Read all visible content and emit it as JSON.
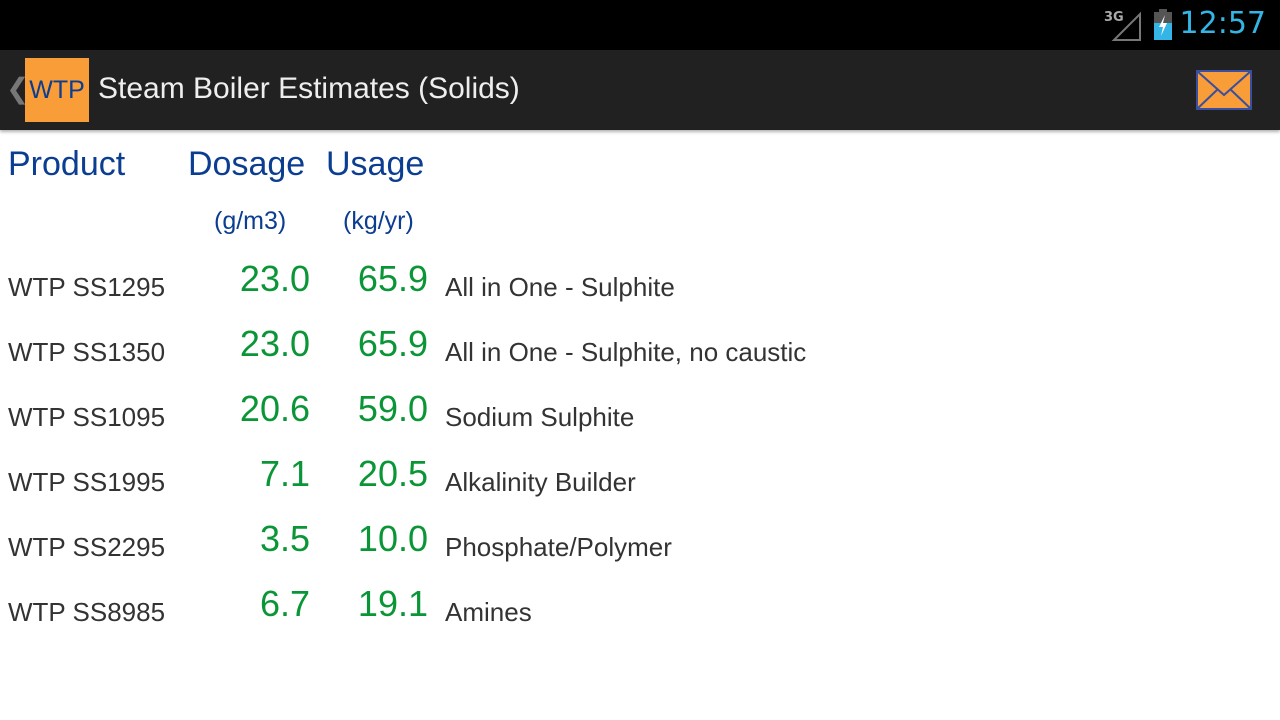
{
  "status_bar": {
    "network": "3G",
    "time": "12:57",
    "icons": [
      "signal-icon",
      "battery-charging-icon"
    ]
  },
  "action_bar": {
    "back_icon": "chevron-left-icon",
    "logo_text": "WTP",
    "title": "Steam Boiler Estimates (Solids)",
    "email_icon": "envelope-icon"
  },
  "colors": {
    "accent": "#33b5e5",
    "logo_bg": "#f99d38",
    "header_text": "#0b3d91",
    "value_text": "#0a9636"
  },
  "table": {
    "headers": {
      "product": "Product",
      "dosage": "Dosage",
      "usage": "Usage"
    },
    "units": {
      "dosage": "(g/m3)",
      "usage": "(kg/yr)"
    },
    "rows": [
      {
        "product": "WTP SS1295",
        "dosage": "23.0",
        "usage": "65.9",
        "description": "All in One - Sulphite"
      },
      {
        "product": "WTP SS1350",
        "dosage": "23.0",
        "usage": "65.9",
        "description": "All in One - Sulphite, no caustic"
      },
      {
        "product": "WTP SS1095",
        "dosage": "20.6",
        "usage": "59.0",
        "description": "Sodium Sulphite"
      },
      {
        "product": "WTP SS1995",
        "dosage": "7.1",
        "usage": "20.5",
        "description": "Alkalinity Builder"
      },
      {
        "product": "WTP SS2295",
        "dosage": "3.5",
        "usage": "10.0",
        "description": "Phosphate/Polymer"
      },
      {
        "product": "WTP SS8985",
        "dosage": "6.7",
        "usage": "19.1",
        "description": "Amines"
      }
    ]
  }
}
